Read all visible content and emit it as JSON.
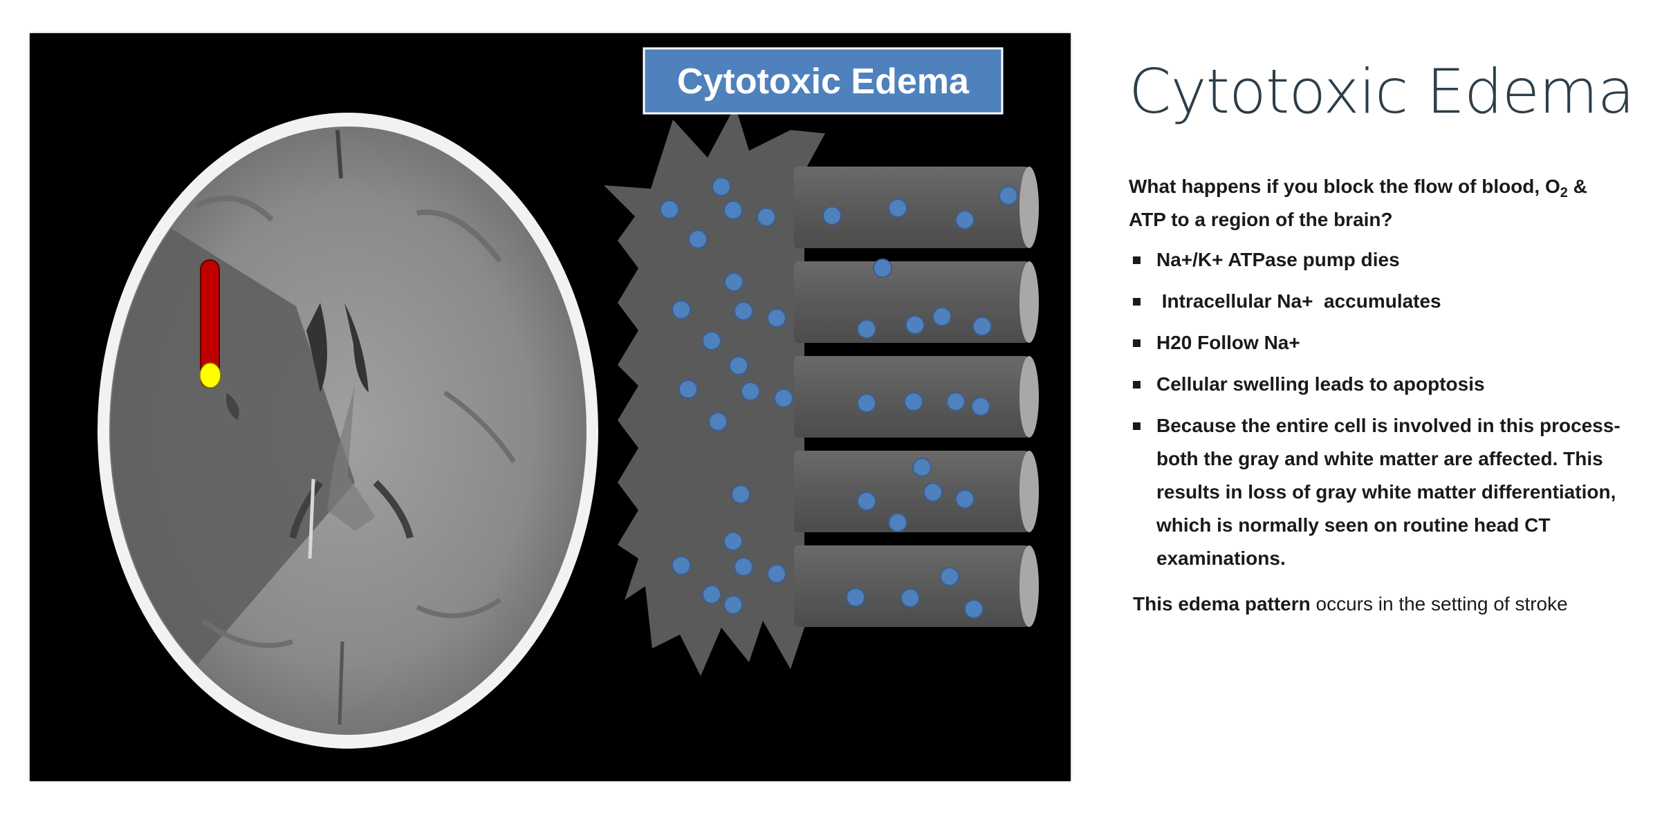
{
  "figure": {
    "banner_label": "Cytotoxic Edema",
    "colors": {
      "banner_fill": "#4f81bd",
      "cell_fill": "#595959",
      "molecule_fill": "#4f81bd",
      "catheter_fill": "#c00000",
      "catheter_tip": "#ffff00",
      "ct_background": "#000000"
    }
  },
  "slide": {
    "title": "Cytotoxic Edema",
    "question_pre": "What happens if you block the flow of blood, O",
    "question_sub": "2",
    "question_post": " & ATP to a region of the brain?",
    "bullets": [
      "Na+/K+ ATPase pump dies",
      " Intracellular Na+  accumulates",
      "H20 Follow Na+",
      "Cellular swelling leads to apoptosis",
      "Because the entire cell is involved in this process- both the gray and white matter are affected. This results in loss of gray white matter differentiation, which is normally seen on routine head CT examinations."
    ],
    "footer_bold": "This edema pattern",
    "footer_rest": " occurs in the setting of stroke"
  }
}
